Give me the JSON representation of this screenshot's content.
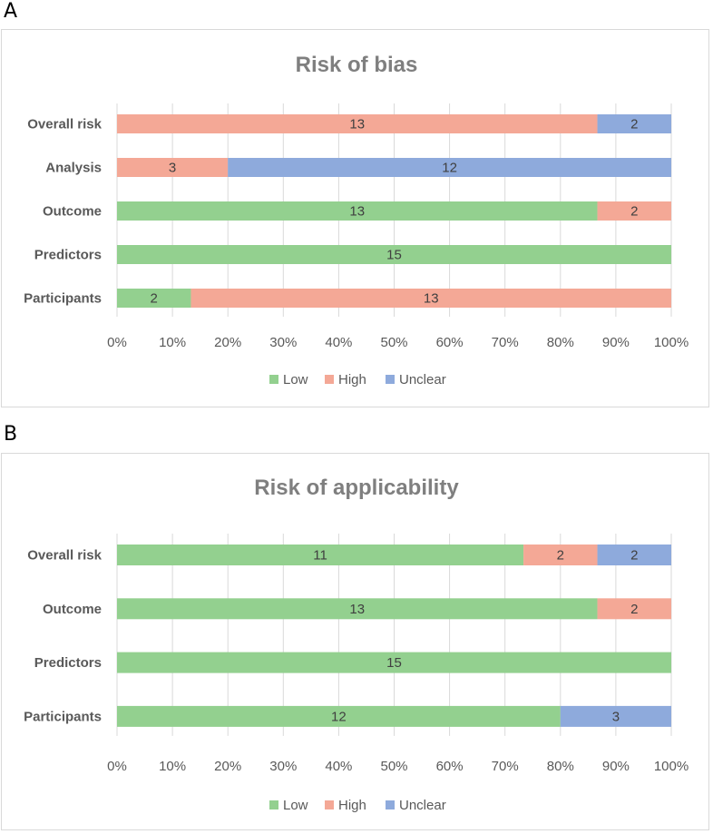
{
  "panels": [
    {
      "letter": "A"
    },
    {
      "letter": "B"
    }
  ],
  "chart_data": [
    {
      "type": "bar",
      "orientation": "horizontal",
      "stacked": "100%",
      "title": "Risk of bias",
      "categories": [
        "Overall risk",
        "Analysis",
        "Outcome",
        "Predictors",
        "Participants"
      ],
      "series": [
        {
          "name": "Low",
          "color": "#93d08f",
          "values": [
            0,
            0,
            13,
            15,
            2
          ]
        },
        {
          "name": "High",
          "color": "#f4a896",
          "values": [
            13,
            3,
            2,
            0,
            13
          ]
        },
        {
          "name": "Unclear",
          "color": "#8eaadc",
          "values": [
            2,
            12,
            0,
            0,
            0
          ]
        }
      ],
      "xticks": [
        "0%",
        "10%",
        "20%",
        "30%",
        "40%",
        "50%",
        "60%",
        "70%",
        "80%",
        "90%",
        "100%"
      ],
      "xlim": [
        0,
        100
      ],
      "grid": true,
      "legend": "bottom"
    },
    {
      "type": "bar",
      "orientation": "horizontal",
      "stacked": "100%",
      "title": "Risk of applicability",
      "categories": [
        "Overall risk",
        "Outcome",
        "Predictors",
        "Participants"
      ],
      "series": [
        {
          "name": "Low",
          "color": "#93d08f",
          "values": [
            11,
            13,
            15,
            12
          ]
        },
        {
          "name": "High",
          "color": "#f4a896",
          "values": [
            2,
            2,
            0,
            0
          ]
        },
        {
          "name": "Unclear",
          "color": "#8eaadc",
          "values": [
            2,
            0,
            0,
            3
          ]
        }
      ],
      "xticks": [
        "0%",
        "10%",
        "20%",
        "30%",
        "40%",
        "50%",
        "60%",
        "70%",
        "80%",
        "90%",
        "100%"
      ],
      "xlim": [
        0,
        100
      ],
      "grid": true,
      "legend": "bottom"
    }
  ]
}
